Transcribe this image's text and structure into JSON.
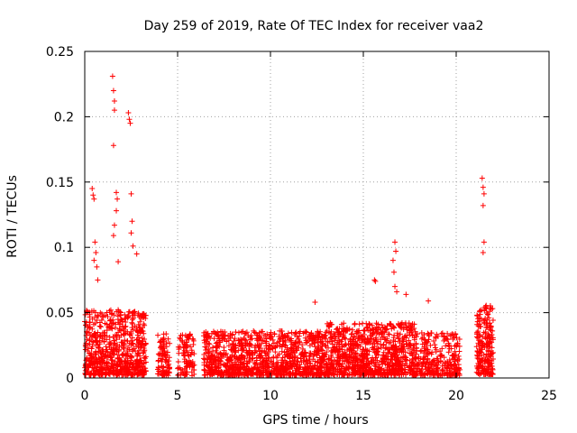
{
  "chart_data": {
    "type": "scatter",
    "title": "Day 259 of 2019, Rate Of TEC Index for receiver vaa2",
    "xlabel": "GPS time / hours",
    "ylabel": "ROTI / TECUs",
    "xlim": [
      0,
      25
    ],
    "ylim": [
      0,
      0.25
    ],
    "xticks": [
      0,
      5,
      10,
      15,
      20,
      25
    ],
    "xtick_labels": [
      "0",
      "5",
      "10",
      "15",
      "20",
      "25"
    ],
    "yticks": [
      0,
      0.05,
      0.1,
      0.15,
      0.2,
      0.25
    ],
    "ytick_labels": [
      "0",
      "0.05",
      "0.1",
      "0.15",
      "0.2",
      "0.25"
    ],
    "grid": true,
    "marker": "+",
    "marker_color": "#ff0000",
    "dense_segments": [
      {
        "x_start": 0.0,
        "x_end": 3.3,
        "y_base": 0.015,
        "y_spread": 0.035,
        "n": 700
      },
      {
        "x_start": 3.9,
        "x_end": 4.6,
        "y_base": 0.012,
        "y_spread": 0.02,
        "n": 90
      },
      {
        "x_start": 5.0,
        "x_end": 5.9,
        "y_base": 0.012,
        "y_spread": 0.02,
        "n": 100
      },
      {
        "x_start": 6.4,
        "x_end": 13.0,
        "y_base": 0.014,
        "y_spread": 0.02,
        "n": 1100
      },
      {
        "x_start": 13.0,
        "x_end": 17.8,
        "y_base": 0.015,
        "y_spread": 0.025,
        "n": 900
      },
      {
        "x_start": 17.8,
        "x_end": 20.2,
        "y_base": 0.013,
        "y_spread": 0.02,
        "n": 300
      },
      {
        "x_start": 21.1,
        "x_end": 22.0,
        "y_base": 0.018,
        "y_spread": 0.035,
        "n": 220
      }
    ],
    "outliers": [
      {
        "x": 0.4,
        "y": 0.145
      },
      {
        "x": 0.45,
        "y": 0.14
      },
      {
        "x": 0.5,
        "y": 0.137
      },
      {
        "x": 0.55,
        "y": 0.104
      },
      {
        "x": 0.6,
        "y": 0.096
      },
      {
        "x": 0.5,
        "y": 0.09
      },
      {
        "x": 0.65,
        "y": 0.085
      },
      {
        "x": 0.7,
        "y": 0.075
      },
      {
        "x": 1.5,
        "y": 0.231
      },
      {
        "x": 1.55,
        "y": 0.22
      },
      {
        "x": 1.6,
        "y": 0.212
      },
      {
        "x": 1.6,
        "y": 0.205
      },
      {
        "x": 1.55,
        "y": 0.178
      },
      {
        "x": 1.7,
        "y": 0.142
      },
      {
        "x": 1.75,
        "y": 0.137
      },
      {
        "x": 1.7,
        "y": 0.128
      },
      {
        "x": 1.6,
        "y": 0.117
      },
      {
        "x": 1.55,
        "y": 0.109
      },
      {
        "x": 1.8,
        "y": 0.089
      },
      {
        "x": 2.35,
        "y": 0.203
      },
      {
        "x": 2.4,
        "y": 0.198
      },
      {
        "x": 2.45,
        "y": 0.195
      },
      {
        "x": 2.5,
        "y": 0.141
      },
      {
        "x": 2.55,
        "y": 0.12
      },
      {
        "x": 2.5,
        "y": 0.111
      },
      {
        "x": 2.6,
        "y": 0.101
      },
      {
        "x": 2.8,
        "y": 0.095
      },
      {
        "x": 12.4,
        "y": 0.058
      },
      {
        "x": 15.6,
        "y": 0.075
      },
      {
        "x": 15.65,
        "y": 0.074
      },
      {
        "x": 16.7,
        "y": 0.104
      },
      {
        "x": 16.75,
        "y": 0.097
      },
      {
        "x": 16.6,
        "y": 0.09
      },
      {
        "x": 16.65,
        "y": 0.081
      },
      {
        "x": 16.7,
        "y": 0.07
      },
      {
        "x": 16.8,
        "y": 0.066
      },
      {
        "x": 17.3,
        "y": 0.064
      },
      {
        "x": 18.5,
        "y": 0.059
      },
      {
        "x": 21.4,
        "y": 0.153
      },
      {
        "x": 21.45,
        "y": 0.146
      },
      {
        "x": 21.5,
        "y": 0.141
      },
      {
        "x": 21.45,
        "y": 0.132
      },
      {
        "x": 21.5,
        "y": 0.104
      },
      {
        "x": 21.45,
        "y": 0.096
      }
    ]
  }
}
